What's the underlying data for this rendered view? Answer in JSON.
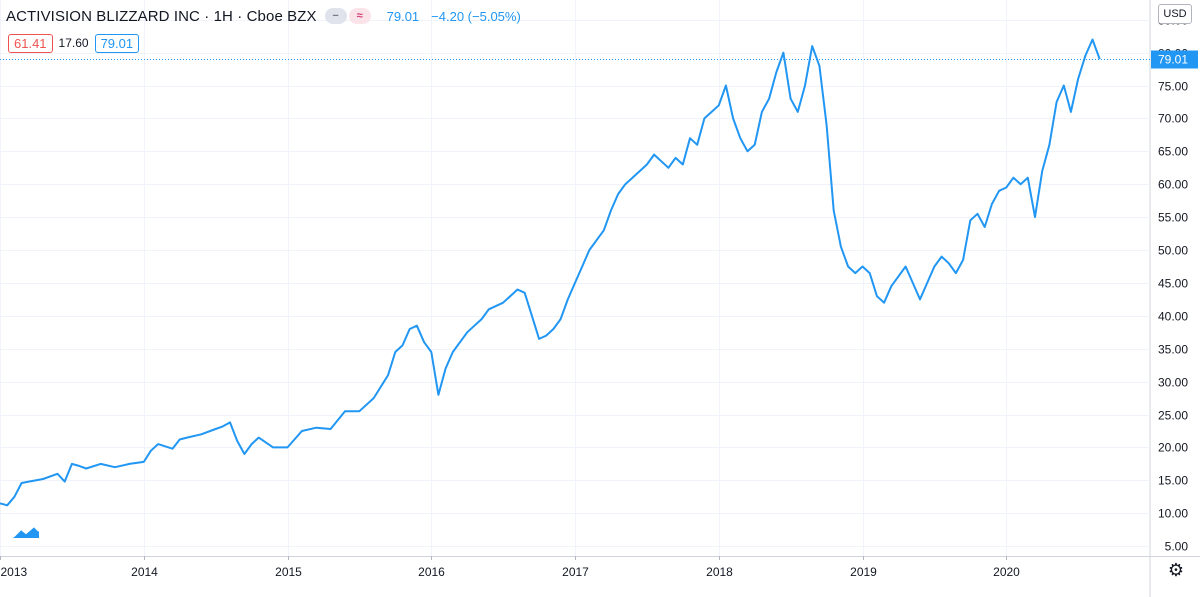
{
  "header": {
    "symbol": "ACTIVISION BLIZZARD INC · 1H · Cboe BZX",
    "last": "79.01",
    "change": "−4.20 (−5.05%)",
    "box_left": "61.41",
    "plain": "17.60",
    "box_right": "79.01",
    "pill1_icon": "minus-icon",
    "pill2_icon": "approx-icon"
  },
  "currency": "USD",
  "icons": {
    "settings": "gear-icon",
    "logo": "tradingview-logo-icon"
  },
  "colors": {
    "line": "#2196f3",
    "grid": "#f0f3fa",
    "axis_text": "#131722",
    "price_tag": "#2196f3",
    "down": "#ef5350"
  },
  "chart_data": {
    "type": "line",
    "title": "",
    "xlabel": "",
    "ylabel": "",
    "x_ticks": [
      "2013",
      "2014",
      "2015",
      "2016",
      "2017",
      "2018",
      "2019",
      "2020"
    ],
    "y_ticks": [
      "5.00",
      "10.00",
      "15.00",
      "20.00",
      "25.00",
      "30.00",
      "35.00",
      "40.00",
      "45.00",
      "50.00",
      "55.00",
      "60.00",
      "65.00",
      "70.00",
      "75.00",
      "80.00",
      "85.00"
    ],
    "ylim": [
      3.5,
      88
    ],
    "xlim": [
      2013.0,
      2021.0
    ],
    "last_price_label": "79.01",
    "grid": true,
    "series": [
      {
        "x": [
          2013.0,
          2013.05,
          2013.1,
          2013.15,
          2013.2,
          2013.3,
          2013.4,
          2013.45,
          2013.5,
          2013.55,
          2013.6,
          2013.7,
          2013.8,
          2013.9,
          2014.0,
          2014.05,
          2014.1,
          2014.2,
          2014.25,
          2014.3,
          2014.4,
          2014.5,
          2014.55,
          2014.6,
          2014.65,
          2014.7,
          2014.75,
          2014.8,
          2014.9,
          2015.0,
          2015.1,
          2015.2,
          2015.3,
          2015.4,
          2015.5,
          2015.6,
          2015.7,
          2015.75,
          2015.8,
          2015.85,
          2015.9,
          2015.95,
          2016.0,
          2016.05,
          2016.1,
          2016.15,
          2016.2,
          2016.25,
          2016.3,
          2016.35,
          2016.4,
          2016.5,
          2016.6,
          2016.65,
          2016.7,
          2016.75,
          2016.8,
          2016.85,
          2016.9,
          2016.95,
          2017.0,
          2017.05,
          2017.1,
          2017.2,
          2017.25,
          2017.3,
          2017.35,
          2017.4,
          2017.45,
          2017.5,
          2017.55,
          2017.6,
          2017.65,
          2017.7,
          2017.75,
          2017.8,
          2017.85,
          2017.9,
          2017.95,
          2018.0,
          2018.05,
          2018.1,
          2018.15,
          2018.2,
          2018.25,
          2018.3,
          2018.35,
          2018.4,
          2018.45,
          2018.5,
          2018.55,
          2018.6,
          2018.65,
          2018.7,
          2018.75,
          2018.8,
          2018.85,
          2018.9,
          2018.95,
          2019.0,
          2019.05,
          2019.1,
          2019.15,
          2019.2,
          2019.25,
          2019.3,
          2019.35,
          2019.4,
          2019.45,
          2019.5,
          2019.55,
          2019.6,
          2019.65,
          2019.7,
          2019.75,
          2019.8,
          2019.85,
          2019.9,
          2019.95,
          2020.0,
          2020.05,
          2020.1,
          2020.15,
          2020.2,
          2020.25,
          2020.3,
          2020.35,
          2020.4,
          2020.45,
          2020.5,
          2020.55,
          2020.6,
          2020.65
        ],
        "values": [
          11.5,
          11.2,
          12.5,
          14.6,
          14.8,
          15.2,
          16.0,
          14.8,
          17.5,
          17.2,
          16.8,
          17.5,
          17.0,
          17.5,
          17.8,
          19.5,
          20.5,
          19.8,
          21.2,
          21.5,
          22.0,
          22.8,
          23.2,
          23.8,
          21.0,
          19.0,
          20.5,
          21.5,
          20.0,
          20.0,
          22.5,
          23.0,
          22.8,
          25.5,
          25.5,
          27.5,
          31.0,
          34.5,
          35.5,
          38.0,
          38.5,
          36.0,
          34.5,
          28.0,
          32.0,
          34.5,
          36.0,
          37.5,
          38.5,
          39.5,
          41.0,
          42.0,
          44.0,
          43.5,
          40.0,
          36.5,
          37.0,
          38.0,
          39.5,
          42.5,
          45.0,
          47.5,
          50.0,
          53.0,
          56.0,
          58.5,
          60.0,
          61.0,
          62.0,
          63.0,
          64.5,
          63.5,
          62.5,
          64.0,
          63.0,
          67.0,
          66.0,
          70.0,
          71.0,
          72.0,
          75.0,
          70.0,
          67.0,
          65.0,
          66.0,
          71.0,
          73.0,
          77.0,
          80.0,
          73.0,
          71.0,
          75.0,
          81.0,
          78.0,
          69.0,
          56.0,
          50.5,
          47.5,
          46.5,
          47.5,
          46.5,
          43.0,
          42.0,
          44.5,
          46.0,
          47.5,
          45.0,
          42.5,
          45.0,
          47.5,
          49.0,
          48.0,
          46.5,
          48.5,
          54.5,
          55.5,
          53.5,
          57.0,
          59.0,
          59.5,
          61.0,
          60.0,
          61.0,
          55.0,
          62.0,
          66.0,
          72.5,
          75.0,
          71.0,
          76.0,
          79.5,
          82.0,
          79.0
        ]
      }
    ]
  }
}
